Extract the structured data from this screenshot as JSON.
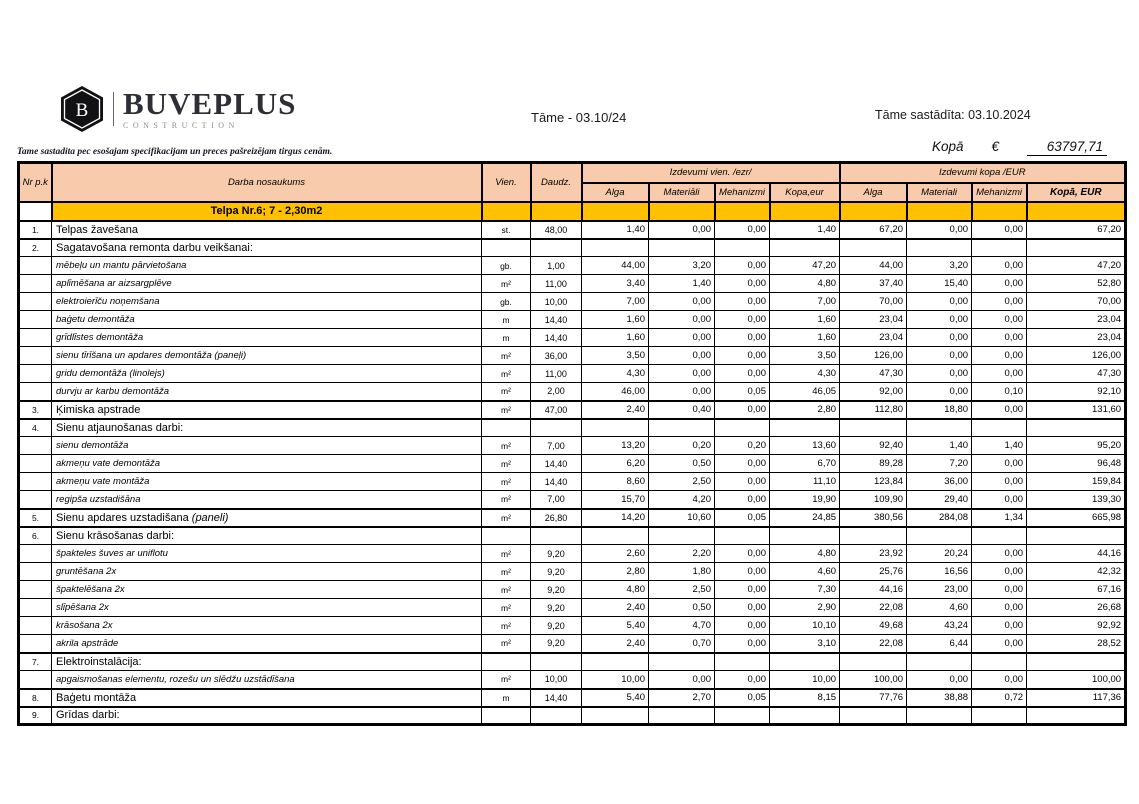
{
  "colors": {
    "gold": "#FFC000",
    "peach": "#F8CBAD",
    "brand_dark": "#2e2e36"
  },
  "brand": {
    "letter": "B",
    "name": "BUVEPLUS",
    "tagline": "CONSTRUCTION"
  },
  "titles": {
    "center": "Tāme - 03.10/24",
    "right": "Tāme sastādīta: 03.10.2024"
  },
  "note": "Tame sastadita pec esošajam specifikacijam un preces pašreizējam tirgus cenām.",
  "total": {
    "label": "Kopā",
    "currency": "€",
    "value": "63797,71"
  },
  "table": {
    "headers": {
      "nr": "Nr p.k",
      "name": "Darba nosaukums",
      "vien": "Vien.",
      "daudz": "Daudz.",
      "group1": "Izdevumi vien. /ezr/",
      "group2": "Izdevumi kopa /EUR",
      "cols1": [
        "Alga",
        "Materiāli",
        "Mehanizmi",
        "Kopa,eur"
      ],
      "cols2": [
        "Alga",
        "Materiali",
        "Mehanizmi",
        "Kopā, EUR"
      ]
    },
    "section": {
      "label": "Telpa Nr.6; 7 - 2,30m2"
    },
    "rows": [
      {
        "nr": "1.",
        "style": "main",
        "label": "Telpas žavešana",
        "vien": "st.",
        "daudz": "48,00",
        "vals": [
          "1,40",
          "0,00",
          "0,00",
          "1,40",
          "67,20",
          "0,00",
          "0,00",
          "67,20"
        ]
      },
      {
        "nr": "2.",
        "style": "main",
        "label": "Sagatavošana remonta darbu veikšanai:",
        "vien": "",
        "daudz": "",
        "vals": [
          "",
          "",
          "",
          "",
          "",
          "",
          "",
          ""
        ]
      },
      {
        "nr": "",
        "style": "sub",
        "label": "mēbeļu un mantu pārvietošana",
        "vien": "gb.",
        "daudz": "1,00",
        "vals": [
          "44,00",
          "3,20",
          "0,00",
          "47,20",
          "44,00",
          "3,20",
          "0,00",
          "47,20"
        ]
      },
      {
        "nr": "",
        "style": "sub",
        "label": "aplīmēšana ar aizsargplēve",
        "vien": "m²",
        "daudz": "11,00",
        "vals": [
          "3,40",
          "1,40",
          "0,00",
          "4,80",
          "37,40",
          "15,40",
          "0,00",
          "52,80"
        ]
      },
      {
        "nr": "",
        "style": "sub",
        "label": "elektroierīču noņemšana",
        "vien": "gb.",
        "daudz": "10,00",
        "vals": [
          "7,00",
          "0,00",
          "0,00",
          "7,00",
          "70,00",
          "0,00",
          "0,00",
          "70,00"
        ]
      },
      {
        "nr": "",
        "style": "sub",
        "label": "baģetu demontāža",
        "vien": "m",
        "daudz": "14,40",
        "vals": [
          "1,60",
          "0,00",
          "0,00",
          "1,60",
          "23,04",
          "0,00",
          "0,00",
          "23,04"
        ]
      },
      {
        "nr": "",
        "style": "sub",
        "label": "grīdlīstes demontāža",
        "vien": "m",
        "daudz": "14,40",
        "vals": [
          "1,60",
          "0,00",
          "0,00",
          "1,60",
          "23,04",
          "0,00",
          "0,00",
          "23,04"
        ]
      },
      {
        "nr": "",
        "style": "sub",
        "label": "sienu tīrīšana un apdares demontāža (paneļi)",
        "vien": "m²",
        "daudz": "36,00",
        "vals": [
          "3,50",
          "0,00",
          "0,00",
          "3,50",
          "126,00",
          "0,00",
          "0,00",
          "126,00"
        ]
      },
      {
        "nr": "",
        "style": "sub",
        "label": "gridu demontāža (linolejs)",
        "vien": "m²",
        "daudz": "11,00",
        "vals": [
          "4,30",
          "0,00",
          "0,00",
          "4,30",
          "47,30",
          "0,00",
          "0,00",
          "47,30"
        ]
      },
      {
        "nr": "",
        "style": "sub",
        "label": "durvju ar karbu demontāža",
        "vien": "m²",
        "daudz": "2,00",
        "vals": [
          "46,00",
          "0,00",
          "0,05",
          "46,05",
          "92,00",
          "0,00",
          "0,10",
          "92,10"
        ]
      },
      {
        "nr": "3.",
        "style": "main",
        "label": "Ķimiska apstrade",
        "vien": "m²",
        "daudz": "47,00",
        "vals": [
          "2,40",
          "0,40",
          "0,00",
          "2,80",
          "112,80",
          "18,80",
          "0,00",
          "131,60"
        ]
      },
      {
        "nr": "4.",
        "style": "main",
        "label": "Sienu atjaunošanas darbi:",
        "vien": "",
        "daudz": "",
        "vals": [
          "",
          "",
          "",
          "",
          "",
          "",
          "",
          ""
        ]
      },
      {
        "nr": "",
        "style": "sub",
        "label": "sienu demontāža",
        "vien": "m²",
        "daudz": "7,00",
        "vals": [
          "13,20",
          "0,20",
          "0,20",
          "13,60",
          "92,40",
          "1,40",
          "1,40",
          "95,20"
        ]
      },
      {
        "nr": "",
        "style": "sub",
        "label": "akmeņu vate demontāža",
        "vien": "m²",
        "daudz": "14,40",
        "vals": [
          "6,20",
          "0,50",
          "0,00",
          "6,70",
          "89,28",
          "7,20",
          "0,00",
          "96,48"
        ]
      },
      {
        "nr": "",
        "style": "sub",
        "label": "akmeņu vate montāža",
        "vien": "m²",
        "daudz": "14,40",
        "vals": [
          "8,60",
          "2,50",
          "0,00",
          "11,10",
          "123,84",
          "36,00",
          "0,00",
          "159,84"
        ]
      },
      {
        "nr": "",
        "style": "sub",
        "label": "regipša uzstadišāna",
        "vien": "m²",
        "daudz": "7,00",
        "vals": [
          "15,70",
          "4,20",
          "0,00",
          "19,90",
          "109,90",
          "29,40",
          "0,00",
          "139,30"
        ]
      },
      {
        "nr": "5.",
        "style": "main",
        "label": "Sienu apdares uzstadišana",
        "label_suffix": "(paneli)",
        "vien": "m²",
        "daudz": "26,80",
        "vals": [
          "14,20",
          "10,60",
          "0,05",
          "24,85",
          "380,56",
          "284,08",
          "1,34",
          "665,98"
        ]
      },
      {
        "nr": "6.",
        "style": "main",
        "label": "Sienu krāsošanas darbi:",
        "vien": "",
        "daudz": "",
        "vals": [
          "",
          "",
          "",
          "",
          "",
          "",
          "",
          ""
        ]
      },
      {
        "nr": "",
        "style": "sub",
        "label": "špakteles šuves ar uniflotu",
        "vien": "m²",
        "daudz": "9,20",
        "vals": [
          "2,60",
          "2,20",
          "0,00",
          "4,80",
          "23,92",
          "20,24",
          "0,00",
          "44,16"
        ]
      },
      {
        "nr": "",
        "style": "sub",
        "label": "gruntēšana 2x",
        "vien": "m²",
        "daudz": "9,20",
        "vals": [
          "2,80",
          "1,80",
          "0,00",
          "4,60",
          "25,76",
          "16,56",
          "0,00",
          "42,32"
        ]
      },
      {
        "nr": "",
        "style": "sub",
        "label": "špaktelēšana 2x",
        "vien": "m²",
        "daudz": "9,20",
        "vals": [
          "4,80",
          "2,50",
          "0,00",
          "7,30",
          "44,16",
          "23,00",
          "0,00",
          "67,16"
        ]
      },
      {
        "nr": "",
        "style": "sub",
        "label": "slīpēšana 2x",
        "vien": "m²",
        "daudz": "9,20",
        "vals": [
          "2,40",
          "0,50",
          "0,00",
          "2,90",
          "22,08",
          "4,60",
          "0,00",
          "26,68"
        ]
      },
      {
        "nr": "",
        "style": "sub",
        "label": "krāsošana 2x",
        "vien": "m²",
        "daudz": "9,20",
        "vals": [
          "5,40",
          "4,70",
          "0,00",
          "10,10",
          "49,68",
          "43,24",
          "0,00",
          "92,92"
        ]
      },
      {
        "nr": "",
        "style": "sub",
        "label": "akrila apstrāde",
        "vien": "m²",
        "daudz": "9,20",
        "vals": [
          "2,40",
          "0,70",
          "0,00",
          "3,10",
          "22,08",
          "6,44",
          "0,00",
          "28,52"
        ]
      },
      {
        "nr": "7.",
        "style": "main",
        "label": "Elektroinstalācija:",
        "vien": "",
        "daudz": "",
        "vals": [
          "",
          "",
          "",
          "",
          "",
          "",
          "",
          ""
        ]
      },
      {
        "nr": "",
        "style": "sub",
        "label": "apgaismošanas elementu, rozešu un slēdžu uzstādīšana",
        "vien": "m²",
        "daudz": "10,00",
        "vals": [
          "10,00",
          "0,00",
          "0,00",
          "10,00",
          "100,00",
          "0,00",
          "0,00",
          "100,00"
        ]
      },
      {
        "nr": "8.",
        "style": "main",
        "label": "Baģetu montāža",
        "vien": "m",
        "daudz": "14,40",
        "vals": [
          "5,40",
          "2,70",
          "0,05",
          "8,15",
          "77,76",
          "38,88",
          "0,72",
          "117,36"
        ]
      },
      {
        "nr": "9.",
        "style": "main",
        "label": "Grīdas darbi:",
        "vien": "",
        "daudz": "",
        "vals": [
          "",
          "",
          "",
          "",
          "",
          "",
          "",
          ""
        ]
      }
    ]
  }
}
